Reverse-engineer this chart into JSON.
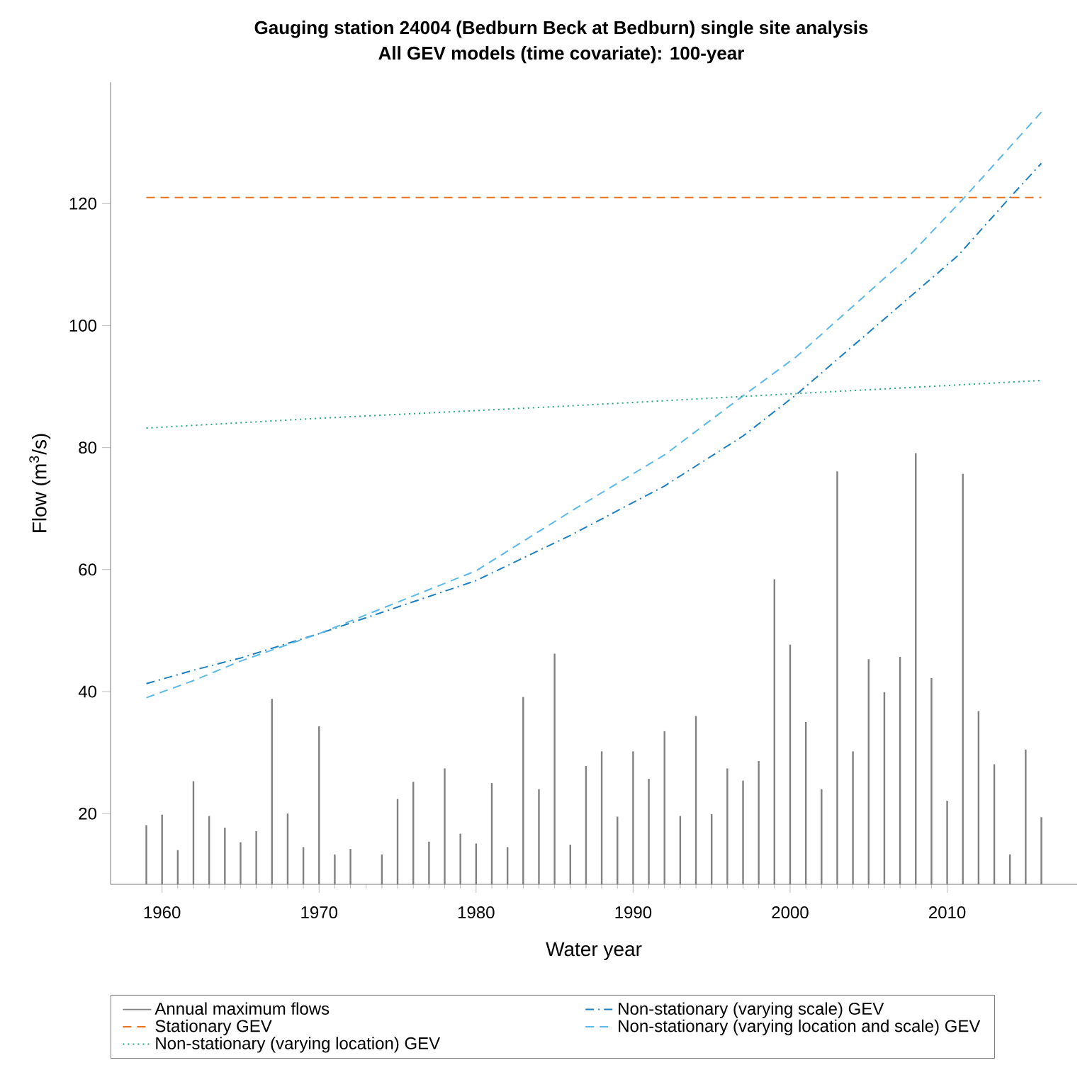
{
  "chart_data": {
    "type": "line",
    "title": "Gauging station 24004 (Bedburn Beck at Bedburn) single site analysis",
    "subtitle": "All GEV models (time covariate): 100-year",
    "xlabel": "Water year",
    "ylabel": "Flow (m$^{3}$/s)",
    "x": [
      1959,
      1960,
      1961,
      1962,
      1963,
      1964,
      1965,
      1966,
      1967,
      1968,
      1969,
      1970,
      1971,
      1972,
      1973,
      1974,
      1975,
      1976,
      1977,
      1978,
      1979,
      1980,
      1981,
      1982,
      1983,
      1984,
      1985,
      1986,
      1987,
      1988,
      1989,
      1990,
      1991,
      1992,
      1993,
      1994,
      1995,
      1996,
      1997,
      1998,
      1999,
      2000,
      2001,
      2002,
      2003,
      2004,
      2005,
      2006,
      2007,
      2008,
      2009,
      2010,
      2011,
      2012,
      2013,
      2014,
      2015,
      2016
    ],
    "series": [
      {
        "name": "Annual maximum flows",
        "type": "bar",
        "color": "#808080",
        "line_style": "solid",
        "values": [
          18.1,
          19.8,
          14.0,
          25.3,
          19.6,
          17.7,
          15.3,
          17.1,
          38.8,
          20.0,
          14.5,
          34.3,
          13.3,
          14.2,
          null,
          13.3,
          22.4,
          25.2,
          15.4,
          27.4,
          16.7,
          15.1,
          25.0,
          14.5,
          39.1,
          24.0,
          46.2,
          14.9,
          27.8,
          30.2,
          19.5,
          30.2,
          25.7,
          33.5,
          19.6,
          36.0,
          19.9,
          27.4,
          25.4,
          28.6,
          58.4,
          47.7,
          35.0,
          24.0,
          76.1,
          30.2,
          45.3,
          39.9,
          45.7,
          79.1,
          42.2,
          22.1,
          75.7,
          36.8,
          28.1,
          13.3,
          30.5,
          19.4
        ]
      },
      {
        "name": "Stationary GEV",
        "color": "#e8731e",
        "line_style": "dashed",
        "x": [
          1959,
          2016
        ],
        "values": [
          121.0,
          121.0
        ]
      },
      {
        "name": "Non-stationary (varying location) GEV",
        "color": "#21a979",
        "line_style": "dotted",
        "x": [
          1959,
          1970,
          1985,
          2000,
          2016
        ],
        "values": [
          83.2,
          84.8,
          86.7,
          88.8,
          91.0
        ]
      },
      {
        "name": "Non-stationary (varying scale) GEV",
        "color": "#1a7fc1",
        "line_style": "dashdot",
        "x": [
          1959,
          1962,
          1965,
          1970,
          1980,
          1986,
          1992,
          1997,
          2000.4,
          2007,
          2010.7,
          2014,
          2016
        ],
        "values": [
          41.3,
          43.5,
          45.5,
          49.5,
          58.2,
          65.6,
          73.7,
          81.9,
          88.7,
          103.3,
          111.5,
          121.0,
          126.6
        ]
      },
      {
        "name": "Non-stationary (varying location and scale) GEV",
        "color": "#5bb8ea",
        "line_style": "dashed",
        "x": [
          1959,
          1962,
          1965,
          1970,
          1980,
          1986.2,
          1992,
          1996.8,
          2000.4,
          2007.5,
          2011.1,
          2016
        ],
        "values": [
          39.0,
          41.8,
          45.0,
          49.5,
          59.8,
          69.8,
          78.8,
          88.1,
          94.9,
          111.2,
          121.0,
          135.0
        ]
      }
    ],
    "xlim": [
      1956.72,
      2018.28
    ],
    "ylim": [
      8.4,
      139.9
    ],
    "xticks": [
      1960,
      1970,
      1980,
      1990,
      2000,
      2010
    ],
    "yticks": [
      20,
      40,
      60,
      80,
      100,
      120
    ],
    "legend": "bottom",
    "grid": false
  }
}
